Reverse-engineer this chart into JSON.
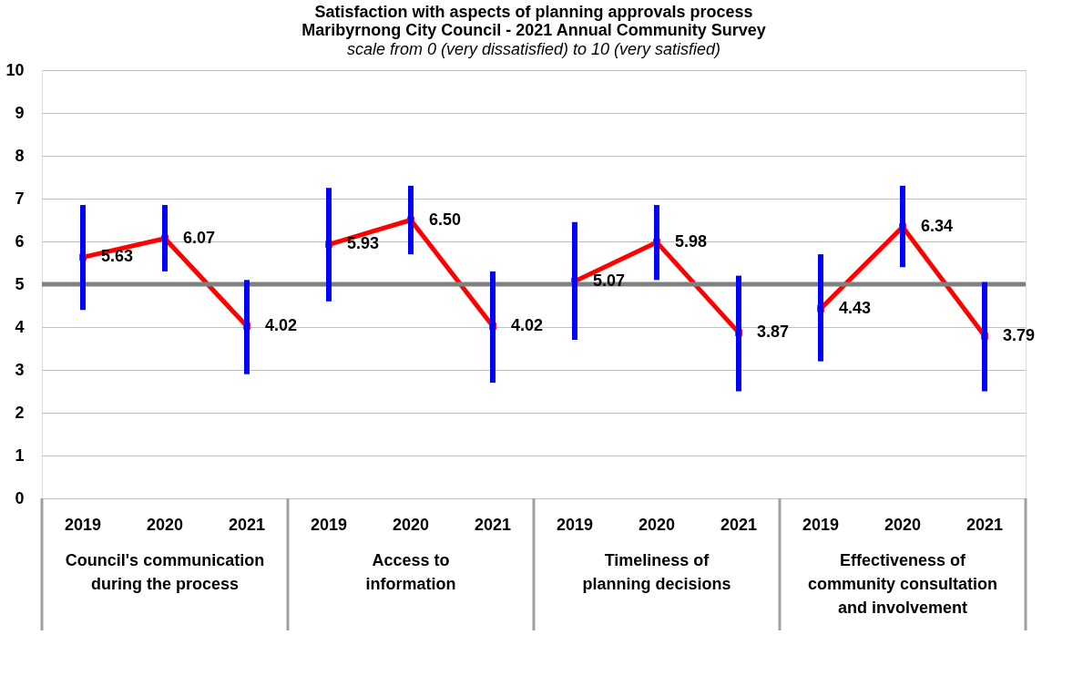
{
  "chart_data": {
    "type": "line",
    "title": "Satisfaction with aspects of planning approvals process\nMaribyrnong City Council - 2021 Annual Community Survey",
    "subtitle": "scale from 0 (very dissatisfied) to 10 (very satisfied)",
    "categories": [
      "2019",
      "2020",
      "2021",
      "2019",
      "2020",
      "2021",
      "2019",
      "2020",
      "2021",
      "2019",
      "2020",
      "2021"
    ],
    "series": [
      {
        "color": "#ff0000",
        "values": [
          5.63,
          6.07,
          4.02,
          null,
          null,
          null,
          null,
          null,
          null,
          null,
          null,
          null
        ],
        "value_labels": [
          "5.63",
          "6.07",
          "4.02",
          null,
          null,
          null,
          null,
          null,
          null,
          null,
          null,
          null
        ],
        "errors": [
          [
            4.4,
            6.85
          ],
          [
            5.3,
            6.85
          ],
          [
            2.9,
            5.1
          ],
          null,
          null,
          null,
          null,
          null,
          null,
          null,
          null,
          null
        ]
      },
      {
        "color": "#ff0000",
        "values": [
          null,
          null,
          null,
          5.93,
          6.5,
          4.02,
          null,
          null,
          null,
          null,
          null,
          null
        ],
        "value_labels": [
          null,
          null,
          null,
          "5.93",
          "6.50",
          "4.02",
          null,
          null,
          null,
          null,
          null,
          null
        ],
        "errors": [
          null,
          null,
          null,
          [
            4.6,
            7.25
          ],
          [
            5.7,
            7.3
          ],
          [
            2.7,
            5.3
          ],
          null,
          null,
          null,
          null,
          null,
          null
        ]
      },
      {
        "color": "#ff0000",
        "values": [
          null,
          null,
          null,
          null,
          null,
          null,
          5.07,
          5.98,
          3.87,
          null,
          null,
          null
        ],
        "value_labels": [
          null,
          null,
          null,
          null,
          null,
          null,
          "5.07",
          "5.98",
          "3.87",
          null,
          null,
          null
        ],
        "errors": [
          null,
          null,
          null,
          null,
          null,
          null,
          [
            3.7,
            6.45
          ],
          [
            5.1,
            6.85
          ],
          [
            2.5,
            5.2
          ],
          null,
          null,
          null
        ]
      },
      {
        "color": "#ff0000",
        "values": [
          null,
          null,
          null,
          null,
          null,
          null,
          null,
          null,
          null,
          4.43,
          6.34,
          3.79
        ],
        "value_labels": [
          null,
          null,
          null,
          null,
          null,
          null,
          null,
          null,
          null,
          "4.43",
          "6.34",
          "3.79"
        ],
        "errors": [
          null,
          null,
          null,
          null,
          null,
          null,
          null,
          null,
          null,
          [
            3.2,
            5.7
          ],
          [
            5.4,
            7.3
          ],
          [
            2.5,
            5.05
          ]
        ]
      }
    ],
    "ylim": [
      0,
      10
    ],
    "yticks": [
      0,
      1,
      2,
      3,
      4,
      5,
      6,
      7,
      8,
      9,
      10
    ],
    "grid": "y",
    "marker": "square",
    "line_style": "solid",
    "ref_lines": [
      {
        "axis": "y",
        "value": 5,
        "color": "#808080"
      }
    ],
    "annotations": [
      "Council's communication during the process",
      "Access to information",
      "Timeliness of planning decisions",
      "Effectiveness of community consultation and involvement"
    ]
  }
}
